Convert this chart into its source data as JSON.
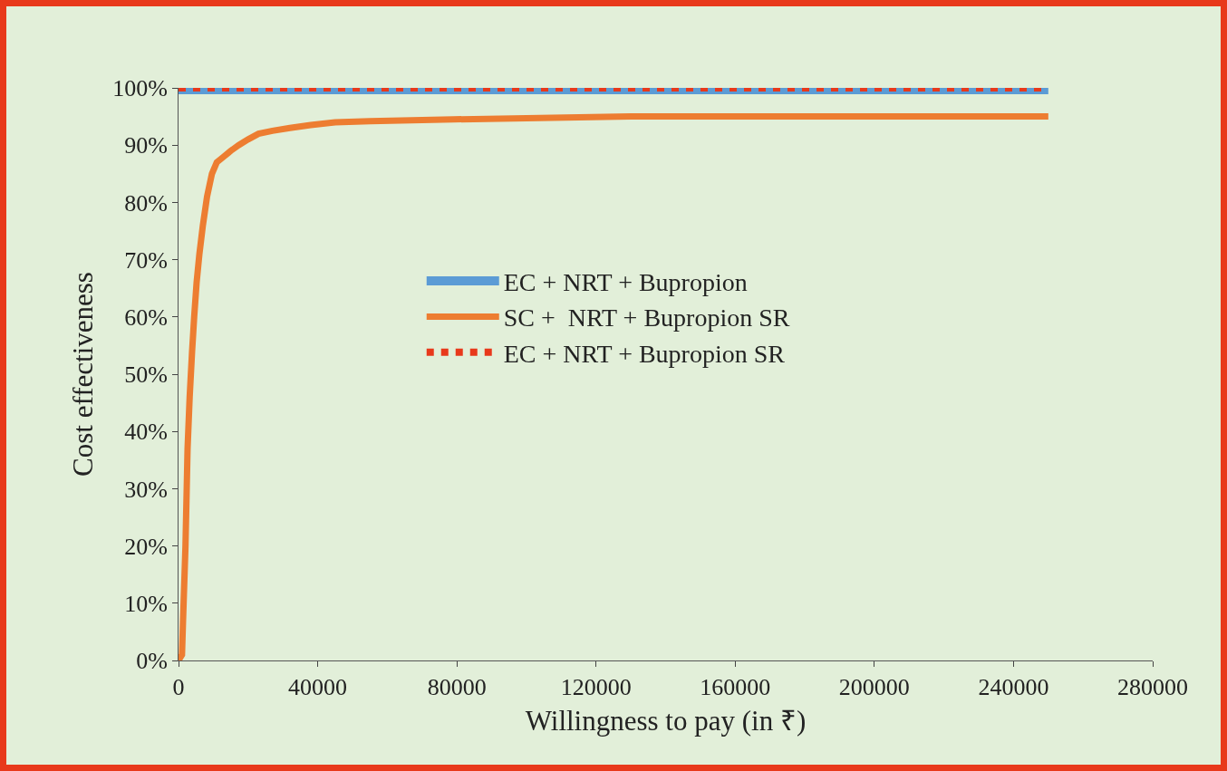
{
  "chart_data": {
    "type": "line",
    "xlabel": "Willingness to pay (in ₹)",
    "ylabel": "Cost effectiveness",
    "xlim": [
      0,
      280000
    ],
    "xticks": [
      0,
      40000,
      80000,
      120000,
      160000,
      200000,
      240000,
      280000
    ],
    "ylim": [
      0,
      1
    ],
    "yticks": [
      {
        "value": 0,
        "label": "0%"
      },
      {
        "value": 0.1,
        "label": "10%"
      },
      {
        "value": 0.2,
        "label": "20%"
      },
      {
        "value": 0.3,
        "label": "30%"
      },
      {
        "value": 0.4,
        "label": "40%"
      },
      {
        "value": 0.5,
        "label": "50%"
      },
      {
        "value": 0.6,
        "label": "60%"
      },
      {
        "value": 0.7,
        "label": "70%"
      },
      {
        "value": 0.8,
        "label": "80%"
      },
      {
        "value": 0.9,
        "label": "90%"
      },
      {
        "value": 1,
        "label": "100%"
      }
    ],
    "grid": false,
    "legend": "center",
    "marker": "none",
    "series": [
      {
        "name": "EC + NRT + Bupropion",
        "color": "#5b9bd5",
        "line_style": "solid",
        "x": [
          0,
          250000
        ],
        "values": [
          1,
          1
        ]
      },
      {
        "name": "SC +  NRT + Bupropion SR",
        "color": "#ed7d31",
        "line_style": "solid",
        "x": [
          0,
          1000,
          1300,
          2000,
          2600,
          3200,
          3900,
          4500,
          5200,
          6000,
          7000,
          8200,
          9600,
          11000,
          13000,
          15000,
          17300,
          20000,
          23000,
          27000,
          32000,
          38000,
          45000,
          55000,
          79000,
          100000,
          130000,
          180000,
          250000
        ],
        "values": [
          0,
          0.01,
          0.07,
          0.2,
          0.37,
          0.46,
          0.54,
          0.6,
          0.66,
          0.71,
          0.76,
          0.81,
          0.85,
          0.87,
          0.88,
          0.89,
          0.9,
          0.91,
          0.92,
          0.925,
          0.93,
          0.935,
          0.94,
          0.942,
          0.945,
          0.947,
          0.95,
          0.95,
          0.95
        ]
      },
      {
        "name": "EC + NRT + Bupropion SR",
        "color": "#e8391b",
        "line_style": "dotted",
        "x": [
          0,
          250000
        ],
        "values": [
          1,
          1
        ]
      }
    ]
  }
}
